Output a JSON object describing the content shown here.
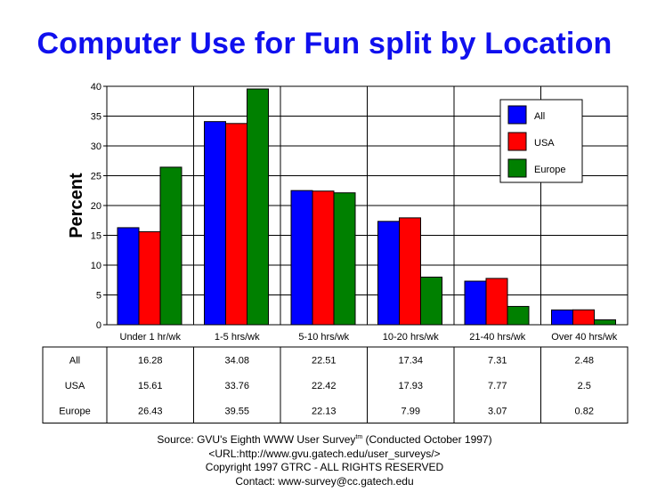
{
  "chart_data": {
    "type": "bar",
    "title": "Computer Use for Fun split by Location",
    "ylabel": "Percent",
    "xlabel": "",
    "ylim": [
      0,
      40
    ],
    "yticks": [
      0,
      5,
      10,
      15,
      20,
      25,
      30,
      35,
      40
    ],
    "grid": true,
    "legend_position": "top-right",
    "categories": [
      "Under 1 hr/wk",
      "1-5 hrs/wk",
      "5-10 hrs/wk",
      "10-20 hrs/wk",
      "21-40 hrs/wk",
      "Over 40 hrs/wk"
    ],
    "series": [
      {
        "name": "All",
        "color": "#0000ff",
        "values": [
          16.28,
          34.08,
          22.51,
          17.34,
          7.31,
          2.48
        ],
        "labels": [
          "16.28",
          "34.08",
          "22.51",
          "17.34",
          "7.31",
          "2.48"
        ]
      },
      {
        "name": "USA",
        "color": "#ff0000",
        "values": [
          15.61,
          33.76,
          22.42,
          17.93,
          7.77,
          2.5
        ],
        "labels": [
          "15.61",
          "33.76",
          "22.42",
          "17.93",
          "7.77",
          "2.5"
        ]
      },
      {
        "name": "Europe",
        "color": "#008000",
        "values": [
          26.43,
          39.55,
          22.13,
          7.99,
          3.07,
          0.82
        ],
        "labels": [
          "26.43",
          "39.55",
          "22.13",
          "7.99",
          "3.07",
          "0.82"
        ]
      }
    ]
  },
  "footer": {
    "source_prefix": "Source: GVU's Eighth WWW User Survey",
    "source_sup": "tm",
    "source_suffix": " (Conducted October 1997)",
    "url": "<URL:http://www.gvu.gatech.edu/user_surveys/>",
    "copyright": "Copyright 1997 GTRC - ALL RIGHTS RESERVED",
    "contact": "Contact: www-survey@cc.gatech.edu"
  }
}
